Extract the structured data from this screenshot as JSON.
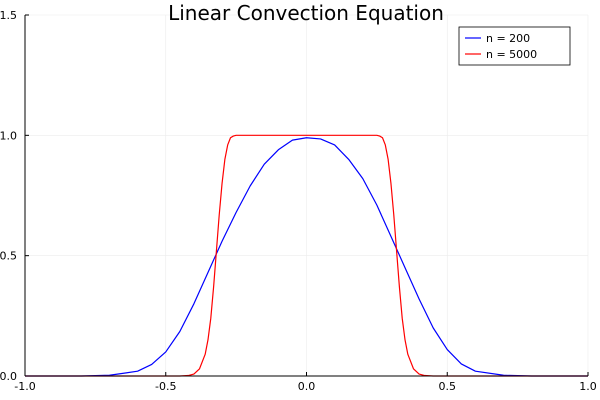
{
  "chart_data": {
    "type": "line",
    "title": "Linear Convection Equation",
    "xlabel": "",
    "ylabel": "",
    "xlim": [
      -1.0,
      1.0
    ],
    "ylim": [
      0.0,
      1.5
    ],
    "x_ticks": [
      -1.0,
      -0.5,
      0.0,
      0.5,
      1.0
    ],
    "x_tick_labels": [
      "-1.0",
      "-0.5",
      "0.0",
      "0.5",
      "1.0"
    ],
    "y_ticks": [
      0.0,
      0.5,
      1.0,
      1.5
    ],
    "y_tick_labels": [
      "0.0",
      "0.5",
      "1.0",
      "1.5"
    ],
    "grid": true,
    "legend_position": "top-right",
    "series": [
      {
        "name": "n = 200",
        "color": "#0000ff",
        "x": [
          -1.0,
          -0.9,
          -0.8,
          -0.7,
          -0.6,
          -0.55,
          -0.5,
          -0.45,
          -0.4,
          -0.35,
          -0.3,
          -0.25,
          -0.2,
          -0.15,
          -0.1,
          -0.05,
          0.0,
          0.05,
          0.1,
          0.15,
          0.2,
          0.25,
          0.3,
          0.35,
          0.4,
          0.45,
          0.5,
          0.55,
          0.6,
          0.7,
          0.8,
          0.9,
          1.0
        ],
        "y": [
          0.0,
          0.0,
          0.0,
          0.003,
          0.02,
          0.048,
          0.1,
          0.185,
          0.3,
          0.43,
          0.56,
          0.68,
          0.79,
          0.88,
          0.94,
          0.98,
          0.99,
          0.985,
          0.96,
          0.9,
          0.82,
          0.71,
          0.58,
          0.45,
          0.32,
          0.2,
          0.11,
          0.05,
          0.02,
          0.003,
          0.0,
          0.0,
          0.0
        ]
      },
      {
        "name": "n = 5000",
        "color": "#ff0000",
        "x": [
          -1.0,
          -0.5,
          -0.45,
          -0.42,
          -0.4,
          -0.38,
          -0.36,
          -0.35,
          -0.34,
          -0.33,
          -0.32,
          -0.31,
          -0.3,
          -0.29,
          -0.28,
          -0.27,
          -0.26,
          -0.25,
          0.25,
          0.26,
          0.27,
          0.28,
          0.29,
          0.3,
          0.31,
          0.32,
          0.33,
          0.34,
          0.35,
          0.36,
          0.38,
          0.4,
          0.42,
          0.45,
          0.5,
          1.0
        ],
        "y": [
          0.0,
          0.0,
          0.0,
          0.002,
          0.008,
          0.03,
          0.09,
          0.15,
          0.24,
          0.37,
          0.52,
          0.67,
          0.8,
          0.9,
          0.96,
          0.99,
          0.997,
          1.0,
          1.0,
          0.997,
          0.99,
          0.96,
          0.9,
          0.8,
          0.67,
          0.52,
          0.37,
          0.24,
          0.15,
          0.09,
          0.03,
          0.008,
          0.002,
          0.0,
          0.0,
          0.0
        ]
      }
    ]
  }
}
